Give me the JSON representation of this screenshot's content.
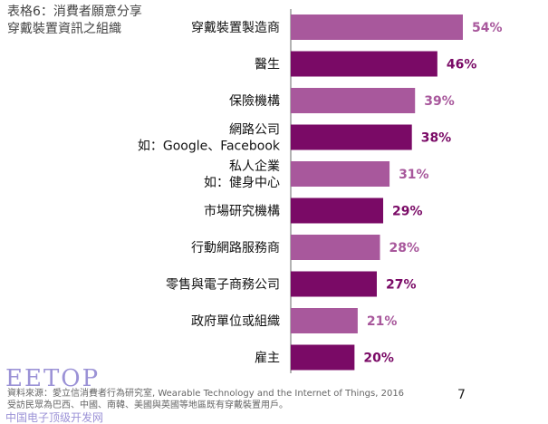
{
  "title": {
    "line1": "表格6：消費者願意分享",
    "line2": "穿戴裝置資訊之組織"
  },
  "chart_data": {
    "type": "bar",
    "orientation": "horizontal",
    "categories": [
      [
        "穿戴裝置製造商"
      ],
      [
        "醫生"
      ],
      [
        "保險機構"
      ],
      [
        "網路公司",
        "如：Google、Facebook"
      ],
      [
        "私人企業",
        "如：健身中心"
      ],
      [
        "市場研究機構"
      ],
      [
        "行動網路服務商"
      ],
      [
        "零售與電子商務公司"
      ],
      [
        "政府單位或組織"
      ],
      [
        "雇主"
      ]
    ],
    "values": [
      54,
      46,
      39,
      38,
      31,
      29,
      28,
      27,
      21,
      20
    ],
    "value_labels": [
      "54%",
      "46%",
      "39%",
      "38%",
      "31%",
      "29%",
      "28%",
      "27%",
      "21%",
      "20%"
    ],
    "xlim": [
      0,
      54
    ],
    "colors": {
      "light": "#a8589c",
      "dark": "#7a0a66",
      "axis": "#9a9a9a"
    }
  },
  "footer": {
    "line1": "資料來源：愛立信消費者行為研究室, Wearable Technology and the Internet of Things, 2016",
    "line2": "受訪民眾為巴西、中國、南韓、美國與英國等地區既有穿戴裝置用戶。"
  },
  "page_number": "7",
  "logo": {
    "en": "EETOP",
    "cn": "中国电子顶级开发网"
  }
}
